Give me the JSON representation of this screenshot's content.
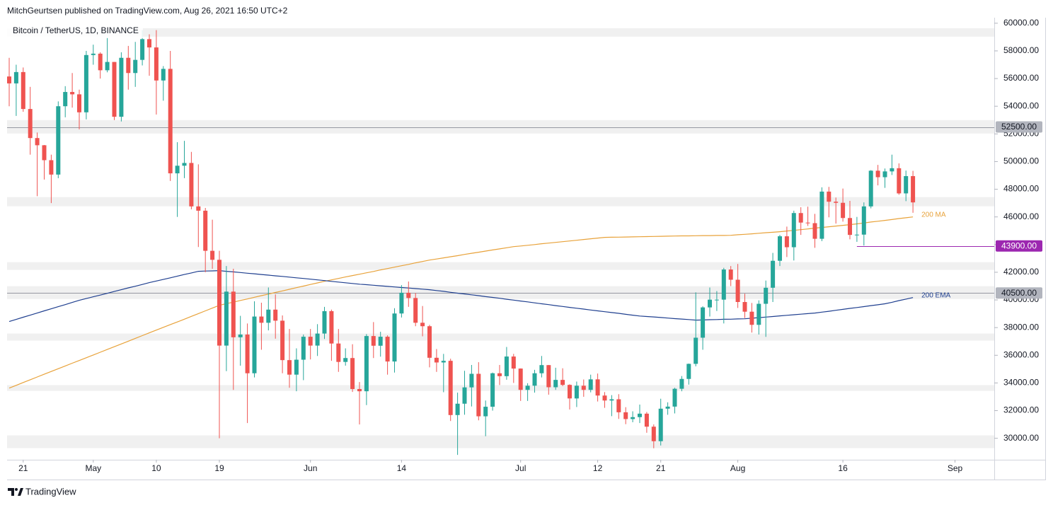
{
  "chart_data": {
    "type": "candlestick",
    "header": "MitchGeurtsen published on TradingView.com, Aug 26, 2021 16:50 UTC+2",
    "title": "Bitcoin / TetherUS, 1D, BINANCE",
    "footer": "TradingView",
    "up_color": "#26a69a",
    "down_color": "#ef5350",
    "categories": [
      null,
      null,
      "21",
      null,
      null,
      null,
      null,
      null,
      null,
      null,
      null,
      null,
      "May",
      null,
      null,
      null,
      null,
      null,
      null,
      null,
      null,
      "10",
      null,
      null,
      null,
      null,
      null,
      null,
      null,
      null,
      "19",
      null,
      null,
      null,
      null,
      null,
      null,
      null,
      null,
      null,
      null,
      null,
      null,
      "Jun",
      null,
      null,
      null,
      null,
      null,
      null,
      null,
      null,
      null,
      null,
      null,
      null,
      "14",
      null,
      null,
      null,
      null,
      null,
      null,
      null,
      null,
      null,
      null,
      null,
      null,
      null,
      null,
      null,
      null,
      "Jul",
      null,
      null,
      null,
      null,
      null,
      null,
      null,
      null,
      null,
      null,
      "12",
      null,
      null,
      null,
      null,
      null,
      null,
      null,
      null,
      "21",
      null,
      null,
      null,
      null,
      null,
      null,
      null,
      null,
      null,
      null,
      "Aug",
      null,
      null,
      null,
      null,
      null,
      null,
      null,
      null,
      null,
      null,
      null,
      null,
      null,
      null,
      "16",
      null,
      null,
      null,
      null,
      null,
      null,
      null,
      null,
      null,
      null,
      null,
      null,
      null,
      null,
      null,
      "Sep"
    ],
    "open": [
      56150,
      55650,
      56470,
      53800,
      51700,
      51180,
      50100,
      49060,
      54000,
      55030,
      54860,
      53560,
      57700,
      57800,
      56600,
      57200,
      53240,
      57500,
      56400,
      57350,
      58850,
      58250,
      55860,
      56700,
      49150,
      49700,
      49900,
      46760,
      46450,
      43550,
      42900,
      36700,
      40600,
      37300,
      37500,
      34700,
      38800,
      38350,
      39300,
      38500,
      35650,
      34600,
      35680,
      37340,
      36700,
      37570,
      39190,
      36850,
      35520,
      35800,
      33560,
      33400,
      37390,
      36690,
      37340,
      35550,
      39020,
      40520,
      40140,
      38350,
      38100,
      35820,
      35480,
      35600,
      31680,
      32500,
      33680,
      34660,
      31590,
      32280,
      34700,
      34490,
      35910,
      35040,
      33500,
      33800,
      34700,
      35290,
      33690,
      34220,
      33860,
      32880,
      33800,
      33500,
      34260,
      33090,
      32730,
      32820,
      31880,
      31390,
      31530,
      31780,
      30840,
      29790,
      32140,
      32290,
      33580,
      34290,
      35380,
      37270,
      39460,
      40020,
      40020,
      42200,
      41460,
      39850,
      39150,
      38200,
      39720,
      40880,
      42830,
      44600,
      43810,
      46280,
      45590,
      45550,
      44420,
      47830,
      47100,
      47020,
      45920,
      44700,
      44720,
      46760,
      49340,
      48870,
      49290,
      49520,
      47700,
      48950,
      null,
      null,
      null,
      null,
      null,
      null
    ],
    "high": [
      57500,
      57000,
      56800,
      55400,
      52100,
      51200,
      50500,
      54350,
      55450,
      56400,
      55200,
      58000,
      58450,
      57900,
      58980,
      57200,
      57900,
      58360,
      58650,
      59500,
      59200,
      59500,
      56900,
      58000,
      51400,
      51500,
      50700,
      49800,
      46650,
      45800,
      43550,
      42450,
      42250,
      38850,
      38300,
      39900,
      39800,
      40900,
      40400,
      38880,
      37900,
      36500,
      37500,
      37900,
      38250,
      39500,
      39300,
      37900,
      36500,
      36800,
      34070,
      37530,
      38400,
      37700,
      37440,
      39400,
      41070,
      41330,
      40500,
      39560,
      38200,
      36450,
      36100,
      35750,
      33300,
      34880,
      35300,
      35500,
      32730,
      34750,
      35300,
      36600,
      36100,
      35050,
      33980,
      34950,
      35950,
      35300,
      35100,
      35060,
      33900,
      34100,
      34250,
      34600,
      34680,
      33340,
      33120,
      33190,
      32250,
      31950,
      32440,
      31900,
      31000,
      32860,
      32600,
      33650,
      34500,
      35400,
      40550,
      39540,
      40900,
      40640,
      42320,
      42450,
      42600,
      40450,
      39780,
      39970,
      41400,
      43400,
      44700,
      45300,
      46450,
      46700,
      46740,
      46220,
      48140,
      48170,
      47400,
      48050,
      47160,
      46000,
      47050,
      49380,
      49760,
      49500,
      50500,
      49870,
      49350,
      49330,
      null,
      null,
      null,
      null,
      null,
      null
    ],
    "low": [
      54000,
      53300,
      53600,
      50500,
      47500,
      48700,
      47000,
      48800,
      53200,
      53900,
      52330,
      53050,
      57000,
      56000,
      56450,
      53000,
      52900,
      55200,
      55400,
      56950,
      56200,
      53400,
      54400,
      48600,
      46000,
      48800,
      46550,
      43825,
      42000,
      42250,
      30000,
      34850,
      33500,
      35250,
      31100,
      34400,
      36400,
      37800,
      37200,
      34700,
      33650,
      33400,
      34200,
      35700,
      35950,
      37180,
      35600,
      34800,
      35250,
      33350,
      31000,
      32400,
      35800,
      35900,
      34600,
      34750,
      38730,
      39500,
      38100,
      37370,
      35130,
      34800,
      33330,
      31250,
      28800,
      31700,
      32300,
      31300,
      30150,
      32000,
      33850,
      34230,
      34000,
      32700,
      32700,
      33300,
      34400,
      33150,
      33500,
      33770,
      32080,
      32260,
      33000,
      33320,
      32660,
      32200,
      31600,
      31400,
      31020,
      31160,
      31100,
      30400,
      29280,
      29480,
      31700,
      31800,
      33400,
      33880,
      35200,
      36400,
      38800,
      39200,
      38300,
      41000,
      39420,
      38690,
      37640,
      37500,
      37330,
      39850,
      42450,
      43100,
      42850,
      44700,
      45350,
      43770,
      44250,
      45970,
      45520,
      45660,
      44380,
      44200,
      43930,
      46620,
      48280,
      48100,
      49030,
      47600,
      47140,
      46300,
      null,
      null,
      null,
      null,
      null,
      null
    ],
    "close": [
      55650,
      56470,
      53800,
      51700,
      51180,
      50100,
      49060,
      54000,
      55030,
      54860,
      53560,
      57700,
      57800,
      56600,
      57200,
      53240,
      57500,
      56400,
      57350,
      58850,
      58250,
      55860,
      56700,
      49150,
      49700,
      49900,
      46760,
      46450,
      43550,
      42900,
      36700,
      40600,
      37300,
      37500,
      34700,
      38800,
      38350,
      39300,
      38500,
      35650,
      34600,
      35680,
      37340,
      36700,
      37570,
      39190,
      36850,
      35520,
      35800,
      33560,
      33400,
      37390,
      36690,
      37340,
      35550,
      39020,
      40520,
      40140,
      38350,
      38100,
      35820,
      35480,
      35600,
      31680,
      32500,
      33680,
      34660,
      31590,
      32280,
      34700,
      34490,
      35910,
      35040,
      33500,
      33800,
      34700,
      35290,
      33690,
      34220,
      33860,
      32880,
      33800,
      33500,
      34260,
      33090,
      32730,
      32820,
      31880,
      31390,
      31530,
      31780,
      30840,
      29790,
      32140,
      32290,
      33580,
      34290,
      35380,
      37270,
      39460,
      40020,
      40020,
      42200,
      41460,
      39850,
      39150,
      38200,
      39720,
      40880,
      42830,
      44600,
      43810,
      46280,
      45590,
      45550,
      44420,
      47830,
      47100,
      47020,
      45920,
      44700,
      44720,
      46760,
      49340,
      48870,
      49290,
      49520,
      47700,
      48950,
      47050,
      null,
      null,
      null,
      null,
      null,
      null
    ],
    "lines": [
      {
        "name": "200 MA",
        "color": "#e8a23a",
        "values": [
          33630,
          33830,
          34030,
          34230,
          34430,
          34630,
          34830,
          35030,
          35230,
          35430,
          35620,
          35820,
          36020,
          36220,
          36420,
          36620,
          36820,
          37020,
          37220,
          37420,
          37620,
          37820,
          38020,
          38220,
          38410,
          38610,
          38810,
          39010,
          39210,
          39410,
          39610,
          39730,
          39840,
          39960,
          40070,
          40190,
          40310,
          40420,
          40540,
          40650,
          40770,
          40890,
          41000,
          41120,
          41230,
          41350,
          41450,
          41550,
          41660,
          41760,
          41860,
          41960,
          42060,
          42170,
          42270,
          42370,
          42470,
          42570,
          42680,
          42780,
          42880,
          42960,
          43040,
          43120,
          43200,
          43290,
          43370,
          43450,
          43530,
          43610,
          43690,
          43770,
          43850,
          43900,
          43950,
          44000,
          44060,
          44110,
          44160,
          44210,
          44260,
          44310,
          44370,
          44420,
          44470,
          44520,
          44530,
          44540,
          44550,
          44560,
          44570,
          44580,
          44590,
          44600,
          44610,
          44620,
          44630,
          44630,
          44640,
          44650,
          44650,
          44660,
          44660,
          44670,
          44710,
          44740,
          44780,
          44820,
          44860,
          44890,
          44930,
          44980,
          45030,
          45080,
          45130,
          45190,
          45240,
          45290,
          45340,
          45390,
          45440,
          45500,
          45560,
          45630,
          45690,
          45750,
          45810,
          45880,
          45940,
          46000,
          null,
          null,
          null,
          null,
          null,
          null
        ]
      },
      {
        "name": "200 EMA",
        "color": "#1f3f8f",
        "values": [
          38440,
          38590,
          38750,
          38900,
          39050,
          39210,
          39360,
          39510,
          39660,
          39820,
          39970,
          40100,
          40230,
          40350,
          40480,
          40610,
          40740,
          40870,
          40990,
          41120,
          41250,
          41370,
          41480,
          41600,
          41720,
          41840,
          41950,
          42070,
          42090,
          42100,
          42120,
          42070,
          42030,
          41980,
          41930,
          41890,
          41840,
          41790,
          41740,
          41700,
          41650,
          41600,
          41550,
          41500,
          41450,
          41400,
          41340,
          41290,
          41240,
          41190,
          41140,
          41100,
          41060,
          41020,
          40980,
          40940,
          40900,
          40860,
          40820,
          40780,
          40740,
          40680,
          40620,
          40550,
          40490,
          40430,
          40370,
          40310,
          40240,
          40180,
          40120,
          40050,
          39990,
          39920,
          39860,
          39790,
          39720,
          39660,
          39590,
          39530,
          39460,
          39400,
          39340,
          39270,
          39210,
          39150,
          39090,
          39030,
          38960,
          38900,
          38840,
          38800,
          38770,
          38730,
          38690,
          38650,
          38620,
          38580,
          38540,
          38550,
          38570,
          38580,
          38600,
          38610,
          38630,
          38640,
          38680,
          38720,
          38760,
          38800,
          38850,
          38890,
          38930,
          38970,
          39010,
          39050,
          39120,
          39180,
          39250,
          39320,
          39390,
          39450,
          39520,
          39590,
          39650,
          39720,
          39830,
          39950,
          40060,
          40170,
          null,
          null,
          null,
          null,
          null,
          null
        ]
      }
    ],
    "levels": [
      {
        "value": 52500,
        "label": "52500.00",
        "color": "#b2b5be"
      },
      {
        "value": 43900,
        "label": "43900.00",
        "color": "#9c27b0"
      },
      {
        "value": 40500,
        "label": "40500.00",
        "color": "#b2b5be"
      }
    ],
    "zones": [
      [
        59030,
        59640
      ],
      [
        52030,
        53000
      ],
      [
        46770,
        47430
      ],
      [
        42170,
        42730
      ],
      [
        40070,
        40990
      ],
      [
        37060,
        37570
      ],
      [
        33430,
        33840
      ],
      [
        29290,
        30210
      ]
    ],
    "ylim": [
      28450,
      60400
    ],
    "yticks": [
      {
        "value": 30000,
        "label": "30000.00"
      },
      {
        "value": 32000,
        "label": "32000.00"
      },
      {
        "value": 34000,
        "label": "34000.00"
      },
      {
        "value": 36000,
        "label": "36000.00"
      },
      {
        "value": 38000,
        "label": "38000.00"
      },
      {
        "value": 40000,
        "label": "40000.00"
      },
      {
        "value": 42000,
        "label": "42000.00"
      },
      {
        "value": 44000,
        "label": "44000.00"
      },
      {
        "value": 46000,
        "label": "46000.00"
      },
      {
        "value": 48000,
        "label": "48000.00"
      },
      {
        "value": 50000,
        "label": "50000.00"
      },
      {
        "value": 52000,
        "label": "52000.00"
      },
      {
        "value": 54000,
        "label": "54000.00"
      },
      {
        "value": 56000,
        "label": "56000.00"
      },
      {
        "value": 58000,
        "label": "58000.00"
      },
      {
        "value": 60000,
        "label": "60000.00"
      }
    ],
    "grid": false
  }
}
